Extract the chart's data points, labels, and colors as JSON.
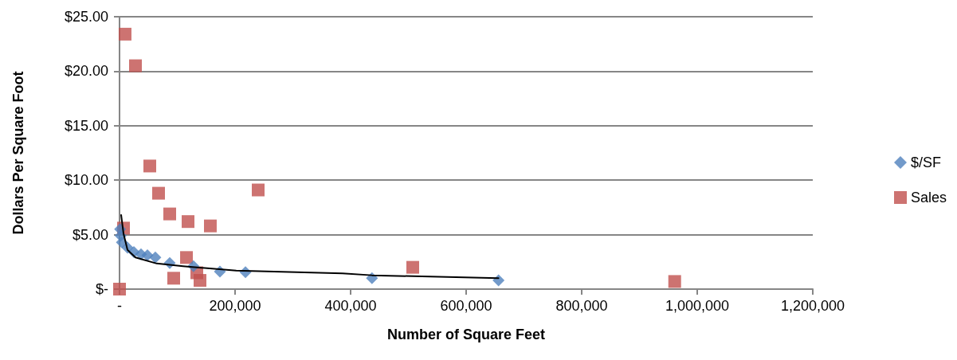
{
  "chart_data": {
    "type": "scatter",
    "xlabel": "Number of Square Feet",
    "ylabel": "Dollars Per Square Foot",
    "xlim": [
      0,
      1200000
    ],
    "xticks": [
      {
        "value": 0,
        "label": "-"
      },
      {
        "value": 200000,
        "label": "200,000"
      },
      {
        "value": 400000,
        "label": "400,000"
      },
      {
        "value": 600000,
        "label": "600,000"
      },
      {
        "value": 800000,
        "label": "800,000"
      },
      {
        "value": 1000000,
        "label": "1,000,000"
      },
      {
        "value": 1200000,
        "label": "1,200,000"
      }
    ],
    "ylim": [
      0,
      25
    ],
    "yticks": [
      {
        "value": 0,
        "label": "$-"
      },
      {
        "value": 5,
        "label": "$5.00"
      },
      {
        "value": 10,
        "label": "$10.00"
      },
      {
        "value": 15,
        "label": "$15.00"
      },
      {
        "value": 20,
        "label": "$20.00"
      },
      {
        "value": 25,
        "label": "$25.00"
      }
    ],
    "grid": "y",
    "legend": "right",
    "series": [
      {
        "name": "$/SF",
        "color": "#4f81bd",
        "marker": "diamond",
        "x": [
          1000,
          2000,
          4100,
          13800,
          24800,
          37200,
          48300,
          62000,
          86900,
          128000,
          173800,
          218000,
          437000,
          656000
        ],
        "values": [
          5.5,
          4.9,
          4.3,
          3.8,
          3.4,
          3.2,
          3.1,
          2.9,
          2.4,
          2.1,
          1.6,
          1.55,
          1.0,
          0.8
        ]
      },
      {
        "name": "Sales",
        "color": "#c0504d",
        "marker": "square",
        "x": [
          9600,
          27600,
          52400,
          67600,
          86900,
          118600,
          157200,
          240000,
          6900,
          0,
          115900,
          93800,
          133800,
          139300,
          507600,
          961000
        ],
        "values": [
          23.4,
          20.5,
          11.3,
          8.8,
          6.9,
          6.2,
          5.8,
          9.1,
          5.6,
          0,
          2.9,
          1.0,
          1.5,
          0.8,
          2.0,
          0.7
        ]
      },
      {
        "type": "line",
        "color": "#000000",
        "marker": "none",
        "line_style": "solid",
        "x": [
          2800,
          6900,
          13800,
          27600,
          64400,
          110000,
          202000,
          386000,
          437000,
          656000
        ],
        "values": [
          6.8,
          5.1,
          3.6,
          2.9,
          2.35,
          2.1,
          1.7,
          1.45,
          1.27,
          1.0
        ]
      }
    ]
  }
}
